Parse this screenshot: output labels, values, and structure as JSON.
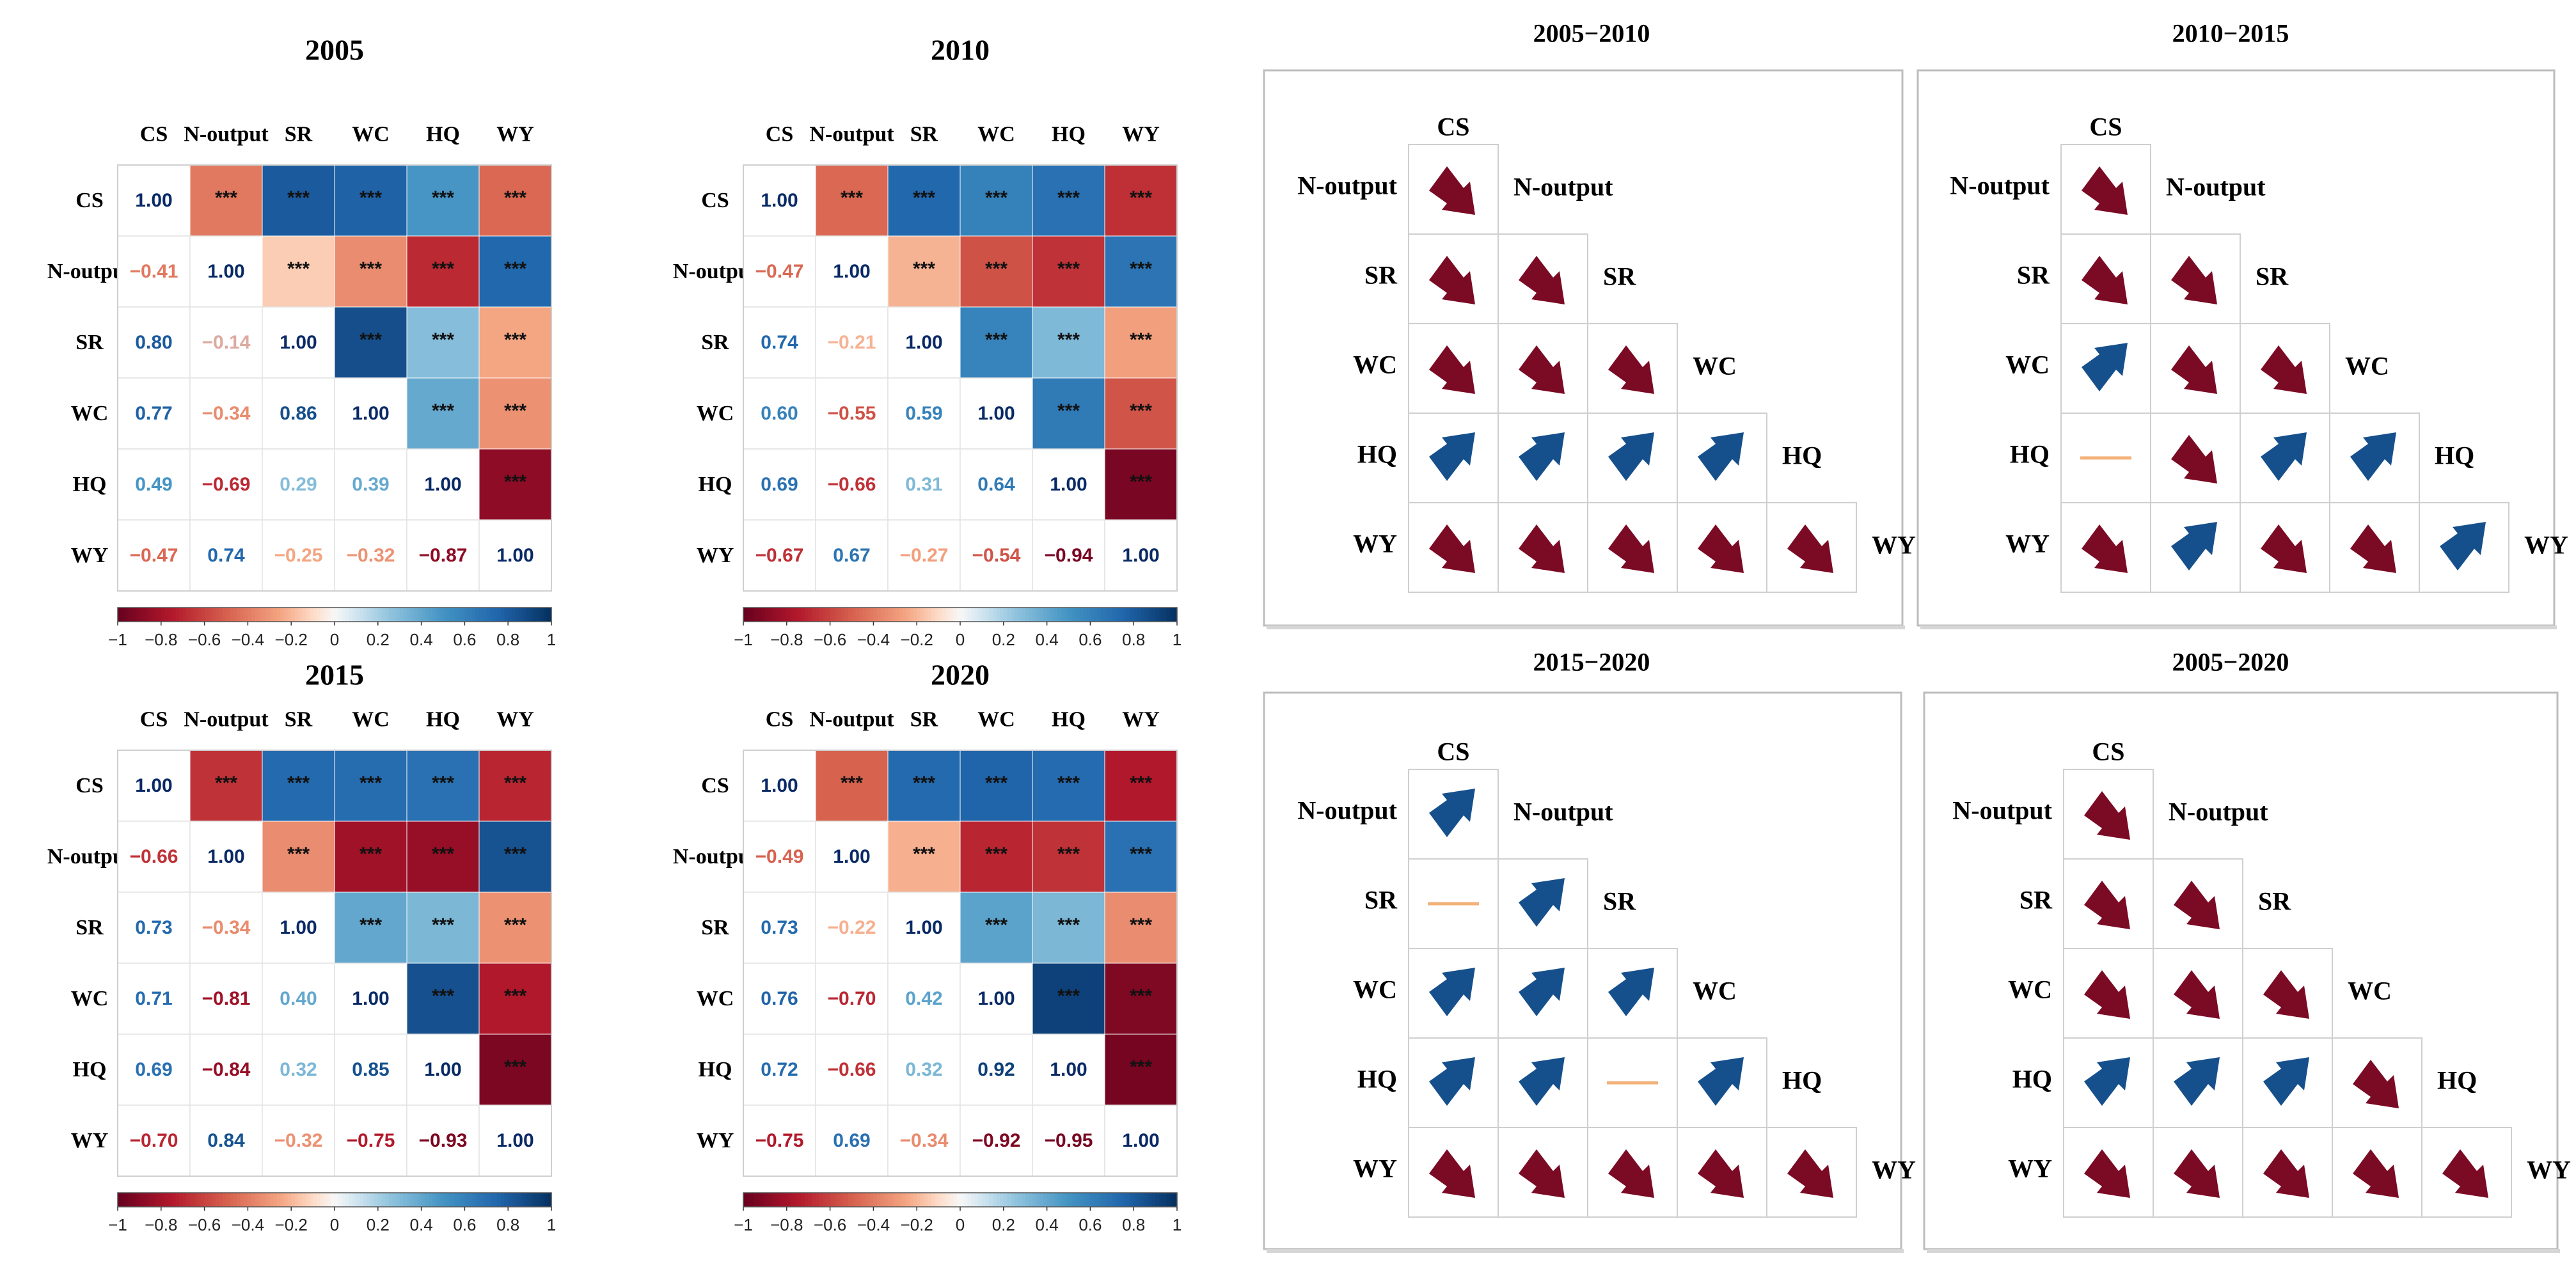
{
  "chart_data": {
    "labels": [
      "CS",
      "N-output",
      "SR",
      "WC",
      "HQ",
      "WY"
    ],
    "colorbar_ticks": [
      "-1",
      "-0.8",
      "-0.6",
      "-0.4",
      "-0.2",
      "0",
      "0.2",
      "0.4",
      "0.6",
      "0.8",
      "1"
    ],
    "significance_mark": "***",
    "heatmaps": [
      {
        "type": "heatmap",
        "title": "2005",
        "values": [
          [
            1.0,
            -0.41,
            0.8,
            0.77,
            0.49,
            -0.47
          ],
          [
            -0.41,
            1.0,
            -0.14,
            -0.34,
            -0.69,
            0.74
          ],
          [
            0.8,
            -0.14,
            1.0,
            0.86,
            0.29,
            -0.25
          ],
          [
            0.77,
            -0.34,
            0.86,
            1.0,
            0.39,
            -0.32
          ],
          [
            0.49,
            -0.69,
            0.29,
            0.39,
            1.0,
            -0.87
          ],
          [
            -0.47,
            0.74,
            -0.25,
            -0.32,
            -0.87,
            1.0
          ]
        ]
      },
      {
        "type": "heatmap",
        "title": "2010",
        "values": [
          [
            1.0,
            -0.47,
            0.74,
            0.6,
            0.69,
            -0.67
          ],
          [
            -0.47,
            1.0,
            -0.21,
            -0.55,
            -0.66,
            0.67
          ],
          [
            0.74,
            -0.21,
            1.0,
            0.59,
            0.31,
            -0.27
          ],
          [
            0.6,
            -0.55,
            0.59,
            1.0,
            0.64,
            -0.54
          ],
          [
            0.69,
            -0.66,
            0.31,
            0.64,
            1.0,
            -0.94
          ],
          [
            -0.67,
            0.67,
            -0.27,
            -0.54,
            -0.94,
            1.0
          ]
        ]
      },
      {
        "type": "heatmap",
        "title": "2015",
        "values": [
          [
            1.0,
            -0.66,
            0.73,
            0.71,
            0.69,
            -0.7
          ],
          [
            -0.66,
            1.0,
            -0.34,
            -0.81,
            -0.84,
            0.84
          ],
          [
            0.73,
            -0.34,
            1.0,
            0.4,
            0.32,
            -0.32
          ],
          [
            0.71,
            -0.81,
            0.4,
            1.0,
            0.85,
            -0.75
          ],
          [
            0.69,
            -0.84,
            0.32,
            0.85,
            1.0,
            -0.93
          ],
          [
            -0.7,
            0.84,
            -0.32,
            -0.75,
            -0.93,
            1.0
          ]
        ]
      },
      {
        "type": "heatmap",
        "title": "2020",
        "values": [
          [
            1.0,
            -0.49,
            0.73,
            0.76,
            0.72,
            -0.75
          ],
          [
            -0.49,
            1.0,
            -0.22,
            -0.7,
            -0.66,
            0.69
          ],
          [
            0.73,
            -0.22,
            1.0,
            0.42,
            0.32,
            -0.34
          ],
          [
            0.76,
            -0.7,
            0.42,
            1.0,
            0.92,
            -0.92
          ],
          [
            0.72,
            -0.66,
            0.32,
            0.92,
            1.0,
            -0.95
          ],
          [
            -0.75,
            0.69,
            -0.34,
            -0.92,
            -0.95,
            1.0
          ]
        ]
      }
    ],
    "trends": [
      {
        "title": "2005−2010",
        "cells": [
          [
            "down"
          ],
          [
            "down",
            "down"
          ],
          [
            "down",
            "down",
            "down"
          ],
          [
            "up",
            "up",
            "up",
            "up"
          ],
          [
            "down",
            "down",
            "down",
            "down",
            "down"
          ]
        ]
      },
      {
        "title": "2010−2015",
        "cells": [
          [
            "down"
          ],
          [
            "down",
            "down"
          ],
          [
            "up",
            "down",
            "down"
          ],
          [
            "flat",
            "down",
            "up",
            "up"
          ],
          [
            "down",
            "up",
            "down",
            "down",
            "up"
          ]
        ]
      },
      {
        "title": "2015−2020",
        "cells": [
          [
            "up"
          ],
          [
            "flat",
            "up"
          ],
          [
            "up",
            "up",
            "up"
          ],
          [
            "up",
            "up",
            "flat",
            "up"
          ],
          [
            "down",
            "down",
            "down",
            "down",
            "down"
          ]
        ]
      },
      {
        "title": "2005−2020",
        "cells": [
          [
            "down"
          ],
          [
            "down",
            "down"
          ],
          [
            "down",
            "down",
            "down"
          ],
          [
            "up",
            "up",
            "up",
            "down"
          ],
          [
            "down",
            "down",
            "down",
            "down",
            "down"
          ]
        ]
      }
    ],
    "trend_colors": {
      "up": "#16508c",
      "down": "#7b0a24",
      "flat": "#f2b27a"
    }
  }
}
